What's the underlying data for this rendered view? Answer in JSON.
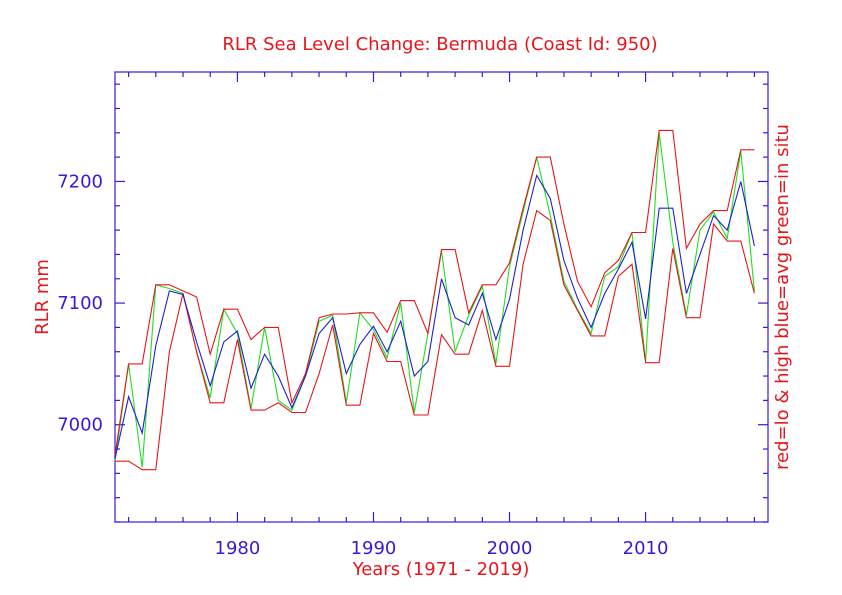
{
  "chart_data": {
    "type": "line",
    "title": "RLR Sea Level Change: Bermuda (Coast Id: 950)",
    "xlabel": "Years (1971 - 2019)",
    "ylabel": "RLR mm",
    "right_label": "red=lo & high  blue=avg  green=in situ",
    "xlim": [
      1971,
      2019
    ],
    "ylim": [
      6920,
      7290
    ],
    "x_major_ticks": [
      1980,
      1990,
      2000,
      2010
    ],
    "x_tick_labels": [
      "1980",
      "1990",
      "2000",
      "2010"
    ],
    "x_minor_step": 2,
    "y_major_ticks": [
      7000,
      7100,
      7200
    ],
    "y_tick_labels": [
      "7000",
      "7100",
      "7200"
    ],
    "y_minor_step": 20,
    "grid": false,
    "colors": {
      "frame": "#3d17d8",
      "text": "#e8161b",
      "low": "#e8161b",
      "high": "#e8161b",
      "avg": "#1f1fd6",
      "insitu": "#22dd22"
    },
    "series": [
      {
        "key": "low",
        "x": [
          1971,
          1972,
          1973,
          1974,
          1975,
          1976,
          1977,
          1978,
          1979,
          1980,
          1981,
          1982,
          1983,
          1984,
          1985,
          1986,
          1987,
          1988,
          1989,
          1990,
          1991,
          1992,
          1993,
          1994,
          1995,
          1996,
          1997,
          1998,
          1999,
          2000,
          2001,
          2002,
          2003,
          2004,
          2005,
          2006,
          2007,
          2008,
          2009,
          2010,
          2011,
          2012,
          2013,
          2014,
          2015,
          2016,
          2017,
          2018
        ],
        "values": [
          6970,
          6970,
          6963,
          6963,
          7060,
          7108,
          7060,
          7018,
          7018,
          7070,
          7012,
          7012,
          7018,
          7010,
          7010,
          7042,
          7082,
          7016,
          7016,
          7075,
          7052,
          7052,
          7008,
          7008,
          7074,
          7058,
          7058,
          7094,
          7048,
          7048,
          7132,
          7176,
          7168,
          7115,
          7094,
          7073,
          7073,
          7122,
          7132,
          7051,
          7051,
          7145,
          7088,
          7088,
          7165,
          7151,
          7151,
          7108
        ]
      },
      {
        "key": "high",
        "x": [
          1971,
          1972,
          1973,
          1974,
          1975,
          1976,
          1977,
          1978,
          1979,
          1980,
          1981,
          1982,
          1983,
          1984,
          1985,
          1986,
          1987,
          1988,
          1989,
          1990,
          1991,
          1992,
          1993,
          1994,
          1995,
          1996,
          1997,
          1998,
          1999,
          2000,
          2001,
          2002,
          2003,
          2004,
          2005,
          2006,
          2007,
          2008,
          2009,
          2010,
          2011,
          2012,
          2013,
          2014,
          2015,
          2016,
          2017,
          2018
        ],
        "values": [
          6975,
          7050,
          7050,
          7115,
          7115,
          7110,
          7105,
          7058,
          7095,
          7095,
          7070,
          7080,
          7080,
          7018,
          7042,
          7088,
          7091,
          7091,
          7092,
          7092,
          7076,
          7102,
          7102,
          7075,
          7144,
          7144,
          7092,
          7115,
          7115,
          7133,
          7178,
          7220,
          7220,
          7165,
          7118,
          7097,
          7125,
          7135,
          7158,
          7158,
          7242,
          7242,
          7145,
          7165,
          7176,
          7176,
          7226,
          7226
        ]
      },
      {
        "key": "avg",
        "x": [
          1971,
          1972,
          1973,
          1974,
          1975,
          1976,
          1977,
          1978,
          1979,
          1980,
          1981,
          1982,
          1983,
          1984,
          1985,
          1986,
          1987,
          1988,
          1989,
          1990,
          1991,
          1992,
          1993,
          1994,
          1995,
          1996,
          1997,
          1998,
          1999,
          2000,
          2001,
          2002,
          2003,
          2004,
          2005,
          2006,
          2007,
          2008,
          2009,
          2010,
          2011,
          2012,
          2013,
          2014,
          2015,
          2016,
          2017,
          2018
        ],
        "values": [
          6972,
          7023,
          6993,
          7065,
          7110,
          7107,
          7068,
          7032,
          7068,
          7077,
          7030,
          7058,
          7040,
          7014,
          7040,
          7075,
          7088,
          7042,
          7066,
          7081,
          7060,
          7085,
          7040,
          7052,
          7120,
          7088,
          7082,
          7108,
          7070,
          7103,
          7160,
          7205,
          7186,
          7135,
          7104,
          7080,
          7108,
          7128,
          7150,
          7087,
          7178,
          7178,
          7108,
          7140,
          7172,
          7160,
          7200,
          7147
        ]
      },
      {
        "key": "insitu",
        "x": [
          1971,
          1972,
          1973,
          1974,
          1975,
          1976,
          1977,
          1978,
          1979,
          1980,
          1981,
          1982,
          1983,
          1984,
          1985,
          1986,
          1987,
          1988,
          1989,
          1990,
          1991,
          1992,
          1993,
          1994,
          1995,
          1996,
          1997,
          1998,
          1999,
          2000,
          2001,
          2002,
          2003,
          2004,
          2005,
          2006,
          2007,
          2008,
          2009,
          2010,
          2011,
          2012,
          2013,
          2014,
          2015,
          2016,
          2017,
          2018
        ],
        "values": [
          6970,
          7050,
          6965,
          7115,
          7112,
          7108,
          7060,
          7022,
          7095,
          7075,
          7013,
          7080,
          7020,
          7012,
          7040,
          7085,
          7090,
          7018,
          7092,
          7078,
          7055,
          7100,
          7010,
          7075,
          7143,
          7060,
          7090,
          7114,
          7050,
          7130,
          7175,
          7220,
          7172,
          7118,
          7095,
          7075,
          7122,
          7130,
          7158,
          7052,
          7240,
          7150,
          7090,
          7160,
          7175,
          7153,
          7225,
          7110
        ]
      }
    ]
  }
}
